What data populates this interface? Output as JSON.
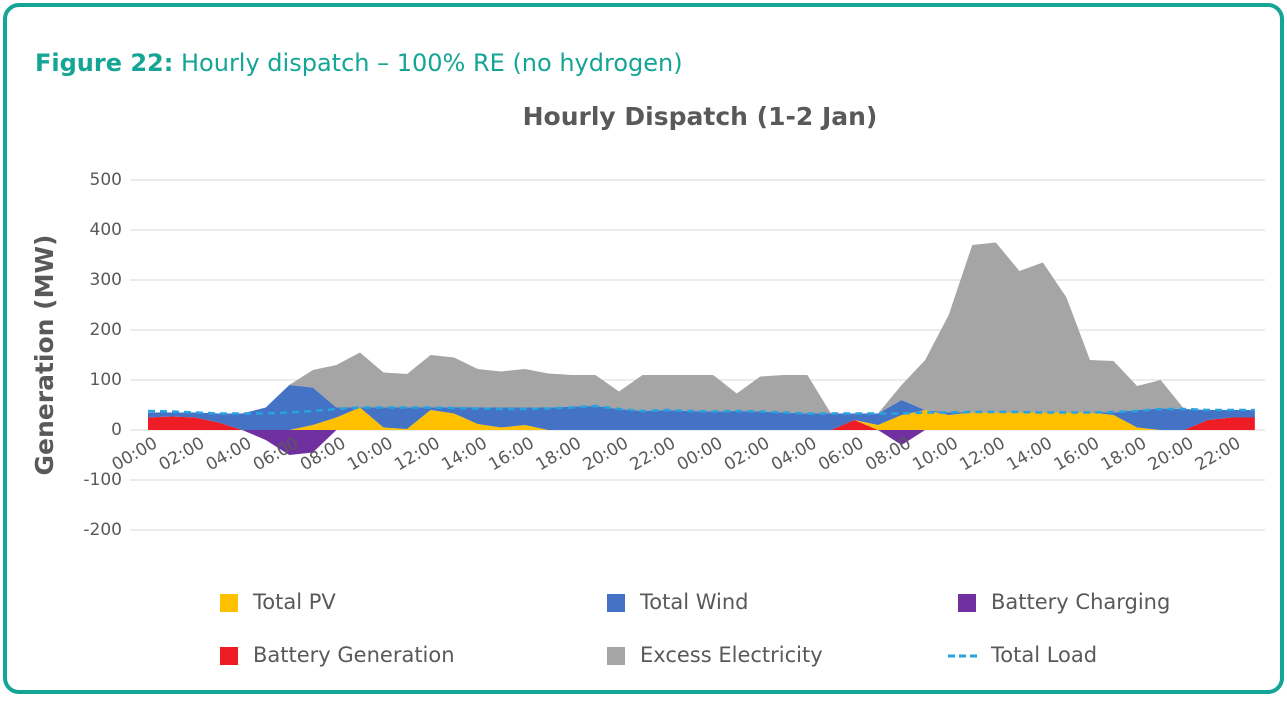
{
  "chart_data": {
    "type": "area",
    "figure_label": "Figure 22:",
    "figure_caption": "Hourly dispatch – 100% RE (no hydrogen)",
    "title": "Hourly Dispatch (1-2 Jan)",
    "y_label": "Generation (MW)",
    "stacked": true,
    "grid": true,
    "legend": "bottom",
    "categories": [
      "00:00",
      null,
      "02:00",
      null,
      "04:00",
      null,
      "06:00",
      null,
      "08:00",
      null,
      "10:00",
      null,
      "12:00",
      null,
      "14:00",
      null,
      "16:00",
      null,
      "18:00",
      null,
      "20:00",
      null,
      "22:00",
      null,
      "00:00",
      null,
      "02:00",
      null,
      "04:00",
      null,
      "06:00",
      null,
      "08:00",
      null,
      "10:00",
      null,
      "12:00",
      null,
      "14:00",
      null,
      "16:00",
      null,
      "18:00",
      null,
      "20:00",
      null,
      "22:00",
      null
    ],
    "ylim": [
      -200,
      500
    ],
    "yticks": [
      -200,
      -100,
      0,
      100,
      200,
      300,
      400,
      500
    ],
    "series": [
      {
        "name": "Total PV",
        "color": "#ffc000",
        "values": [
          0,
          0,
          0,
          0,
          0,
          0,
          0,
          10,
          25,
          45,
          5,
          2,
          40,
          33,
          12,
          5,
          10,
          0,
          0,
          0,
          0,
          0,
          0,
          0,
          0,
          0,
          0,
          0,
          0,
          0,
          0,
          10,
          30,
          40,
          30,
          35,
          35,
          35,
          35,
          35,
          35,
          30,
          5,
          0,
          0,
          0,
          0,
          0
        ]
      },
      {
        "name": "Total Wind",
        "color": "#4472c4",
        "values": [
          10,
          8,
          10,
          18,
          33,
          45,
          90,
          75,
          20,
          0,
          40,
          43,
          5,
          12,
          33,
          40,
          35,
          45,
          47,
          48,
          42,
          38,
          40,
          38,
          37,
          38,
          37,
          35,
          33,
          33,
          13,
          23,
          30,
          0,
          5,
          0,
          0,
          0,
          0,
          0,
          0,
          5,
          35,
          43,
          42,
          20,
          15,
          15
        ]
      },
      {
        "name": "Battery Charging",
        "color": "#7030a0",
        "values": [
          0,
          0,
          0,
          0,
          0,
          -20,
          -50,
          -45,
          0,
          0,
          0,
          0,
          0,
          0,
          0,
          0,
          0,
          0,
          0,
          0,
          0,
          0,
          0,
          0,
          0,
          0,
          0,
          0,
          0,
          0,
          0,
          0,
          -30,
          0,
          0,
          0,
          0,
          0,
          0,
          0,
          0,
          0,
          0,
          0,
          0,
          0,
          0,
          0
        ]
      },
      {
        "name": "Battery Generation",
        "color": "#ee1c25",
        "values": [
          25,
          27,
          25,
          15,
          0,
          0,
          0,
          0,
          0,
          0,
          0,
          0,
          0,
          0,
          0,
          0,
          0,
          0,
          0,
          0,
          0,
          0,
          0,
          0,
          0,
          0,
          0,
          0,
          0,
          0,
          20,
          0,
          0,
          0,
          0,
          0,
          0,
          0,
          0,
          0,
          0,
          0,
          0,
          0,
          0,
          20,
          25,
          25
        ]
      },
      {
        "name": "Excess Electricity",
        "color": "#a5a5a5",
        "values": [
          0,
          0,
          0,
          0,
          0,
          0,
          0,
          35,
          85,
          110,
          70,
          67,
          105,
          100,
          77,
          72,
          77,
          68,
          63,
          62,
          35,
          72,
          70,
          72,
          73,
          35,
          70,
          75,
          77,
          0,
          0,
          0,
          30,
          100,
          195,
          335,
          340,
          283,
          300,
          230,
          105,
          103,
          48,
          57,
          0,
          0,
          0,
          0
        ]
      },
      {
        "name": "Total Load",
        "color": "#29a3e0",
        "line": "dashed",
        "values": [
          38,
          37,
          35,
          33,
          33,
          33,
          35,
          38,
          42,
          45,
          45,
          45,
          45,
          44,
          43,
          42,
          42,
          43,
          45,
          48,
          42,
          38,
          40,
          38,
          37,
          38,
          37,
          35,
          33,
          33,
          33,
          33,
          33,
          35,
          35,
          36,
          36,
          36,
          35,
          35,
          35,
          36,
          38,
          42,
          42,
          40,
          40,
          40
        ]
      }
    ]
  }
}
